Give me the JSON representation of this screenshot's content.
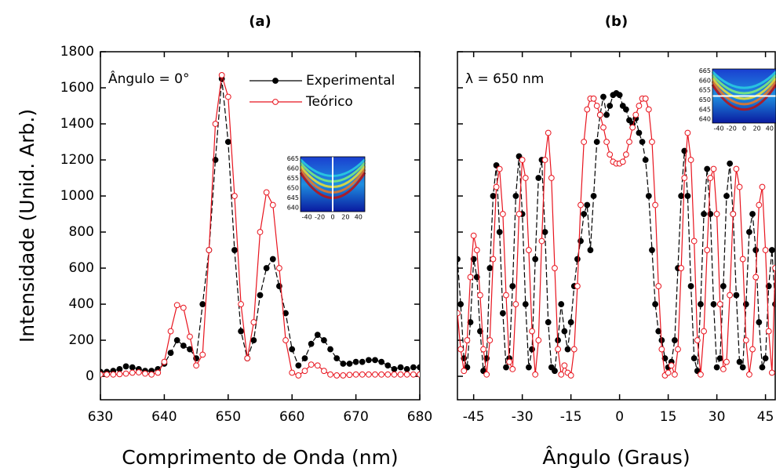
{
  "chart_data": [
    {
      "type": "line",
      "title": "(a)",
      "x_label": "Comprimento de Onda (nm)",
      "y_label": "Intensidade (Unid. Arb.)",
      "annotation": "Ângulo = 0°",
      "x": [
        630,
        631,
        632,
        633,
        634,
        635,
        636,
        637,
        638,
        639,
        640,
        641,
        642,
        643,
        644,
        645,
        646,
        647,
        648,
        649,
        650,
        651,
        652,
        653,
        654,
        655,
        656,
        657,
        658,
        659,
        660,
        661,
        662,
        663,
        664,
        665,
        666,
        667,
        668,
        669,
        670,
        671,
        672,
        673,
        674,
        675,
        676,
        677,
        678,
        679,
        680
      ],
      "series": [
        {
          "name": "Experimental",
          "color": "#000000",
          "values": [
            25,
            25,
            30,
            40,
            55,
            50,
            40,
            30,
            30,
            40,
            70,
            130,
            200,
            170,
            150,
            100,
            400,
            700,
            1200,
            1650,
            1300,
            700,
            250,
            100,
            200,
            450,
            600,
            650,
            500,
            350,
            150,
            60,
            100,
            180,
            230,
            200,
            150,
            100,
            70,
            70,
            80,
            80,
            90,
            90,
            80,
            60,
            40,
            50,
            40,
            50,
            50
          ]
        },
        {
          "name": "Teórico",
          "color": "#e8141e",
          "values": [
            10,
            10,
            10,
            12,
            15,
            20,
            22,
            15,
            10,
            20,
            80,
            250,
            395,
            380,
            220,
            60,
            120,
            700,
            1400,
            1670,
            1550,
            1000,
            400,
            100,
            300,
            800,
            1020,
            950,
            600,
            200,
            20,
            5,
            30,
            65,
            60,
            30,
            10,
            5,
            5,
            8,
            10,
            10,
            10,
            10,
            10,
            10,
            10,
            10,
            10,
            10,
            10
          ]
        }
      ],
      "xlim": [
        630,
        680
      ],
      "xticks": [
        630,
        640,
        650,
        660,
        670,
        680
      ],
      "ylim": [
        -130,
        1800
      ],
      "yticks": [
        0,
        200,
        400,
        600,
        800,
        1000,
        1200,
        1400,
        1600,
        1800
      ],
      "legend": true,
      "ytick_labels": true,
      "inset": {
        "xlim": [
          -50,
          50
        ],
        "xticks": [
          -40,
          -20,
          0,
          20,
          40
        ],
        "ylim": [
          638,
          666
        ],
        "yticks": [
          665,
          660,
          655,
          650,
          645,
          640
        ],
        "marker_line": "vertical"
      }
    },
    {
      "type": "line",
      "title": "(b)",
      "x_label": "Ângulo (Graus)",
      "annotation": "λ = 650 nm",
      "x": [
        -50,
        -49,
        -48,
        -47,
        -46,
        -45,
        -44,
        -43,
        -42,
        -41,
        -40,
        -39,
        -38,
        -37,
        -36,
        -35,
        -34,
        -33,
        -32,
        -31,
        -30,
        -29,
        -28,
        -27,
        -26,
        -25,
        -24,
        -23,
        -22,
        -21,
        -20,
        -19,
        -18,
        -17,
        -16,
        -15,
        -14,
        -13,
        -12,
        -11,
        -10,
        -9,
        -8,
        -7,
        -6,
        -5,
        -4,
        -3,
        -2,
        -1,
        0,
        1,
        2,
        3,
        4,
        5,
        6,
        7,
        8,
        9,
        10,
        11,
        12,
        13,
        14,
        15,
        16,
        17,
        18,
        19,
        20,
        21,
        22,
        23,
        24,
        25,
        26,
        27,
        28,
        29,
        30,
        31,
        32,
        33,
        34,
        35,
        36,
        37,
        38,
        39,
        40,
        41,
        42,
        43,
        44,
        45,
        46,
        47,
        48
      ],
      "series": [
        {
          "color": "#000000",
          "values": [
            650,
            400,
            100,
            50,
            300,
            650,
            550,
            250,
            30,
            100,
            600,
            1000,
            1170,
            800,
            350,
            50,
            100,
            500,
            1000,
            1220,
            900,
            400,
            50,
            150,
            650,
            1100,
            1200,
            800,
            300,
            50,
            30,
            200,
            400,
            250,
            150,
            300,
            500,
            650,
            750,
            900,
            950,
            700,
            1000,
            1300,
            1450,
            1550,
            1450,
            1500,
            1560,
            1570,
            1560,
            1500,
            1480,
            1420,
            1400,
            1430,
            1350,
            1300,
            1200,
            1000,
            700,
            400,
            250,
            200,
            100,
            50,
            80,
            200,
            600,
            1000,
            1250,
            1000,
            500,
            100,
            30,
            400,
            900,
            1150,
            900,
            400,
            50,
            100,
            500,
            1000,
            1180,
            900,
            450,
            80,
            50,
            400,
            800,
            900,
            700,
            300,
            50,
            100,
            500,
            700,
            400
          ]
        },
        {
          "color": "#e8141e",
          "values": [
            350,
            150,
            30,
            200,
            550,
            780,
            700,
            450,
            150,
            10,
            200,
            650,
            1050,
            1150,
            900,
            450,
            80,
            40,
            400,
            900,
            1200,
            1100,
            700,
            250,
            10,
            200,
            750,
            1200,
            1350,
            1100,
            600,
            150,
            10,
            60,
            20,
            5,
            150,
            500,
            950,
            1300,
            1480,
            1540,
            1540,
            1500,
            1450,
            1380,
            1300,
            1230,
            1190,
            1180,
            1180,
            1190,
            1230,
            1300,
            1380,
            1450,
            1500,
            1540,
            1540,
            1480,
            1300,
            950,
            500,
            150,
            5,
            20,
            60,
            10,
            150,
            600,
            1100,
            1350,
            1200,
            750,
            200,
            10,
            250,
            700,
            1100,
            1150,
            900,
            400,
            40,
            80,
            450,
            900,
            1150,
            1050,
            650,
            200,
            10,
            150,
            550,
            950,
            1050,
            700,
            250,
            20,
            600
          ]
        }
      ],
      "xlim": [
        -50,
        48
      ],
      "xticks": [
        -45,
        -30,
        -15,
        0,
        15,
        30,
        45
      ],
      "ylim": [
        -130,
        1800
      ],
      "yticks": [
        0,
        200,
        400,
        600,
        800,
        1000,
        1200,
        1400,
        1600,
        1800
      ],
      "legend": false,
      "ytick_labels": false,
      "inset": {
        "xlim": [
          -50,
          50
        ],
        "xticks": [
          -40,
          -20,
          0,
          20,
          40
        ],
        "ylim": [
          638,
          666
        ],
        "yticks": [
          665,
          660,
          655,
          650,
          645,
          640
        ],
        "marker_line": "horizontal"
      }
    }
  ]
}
